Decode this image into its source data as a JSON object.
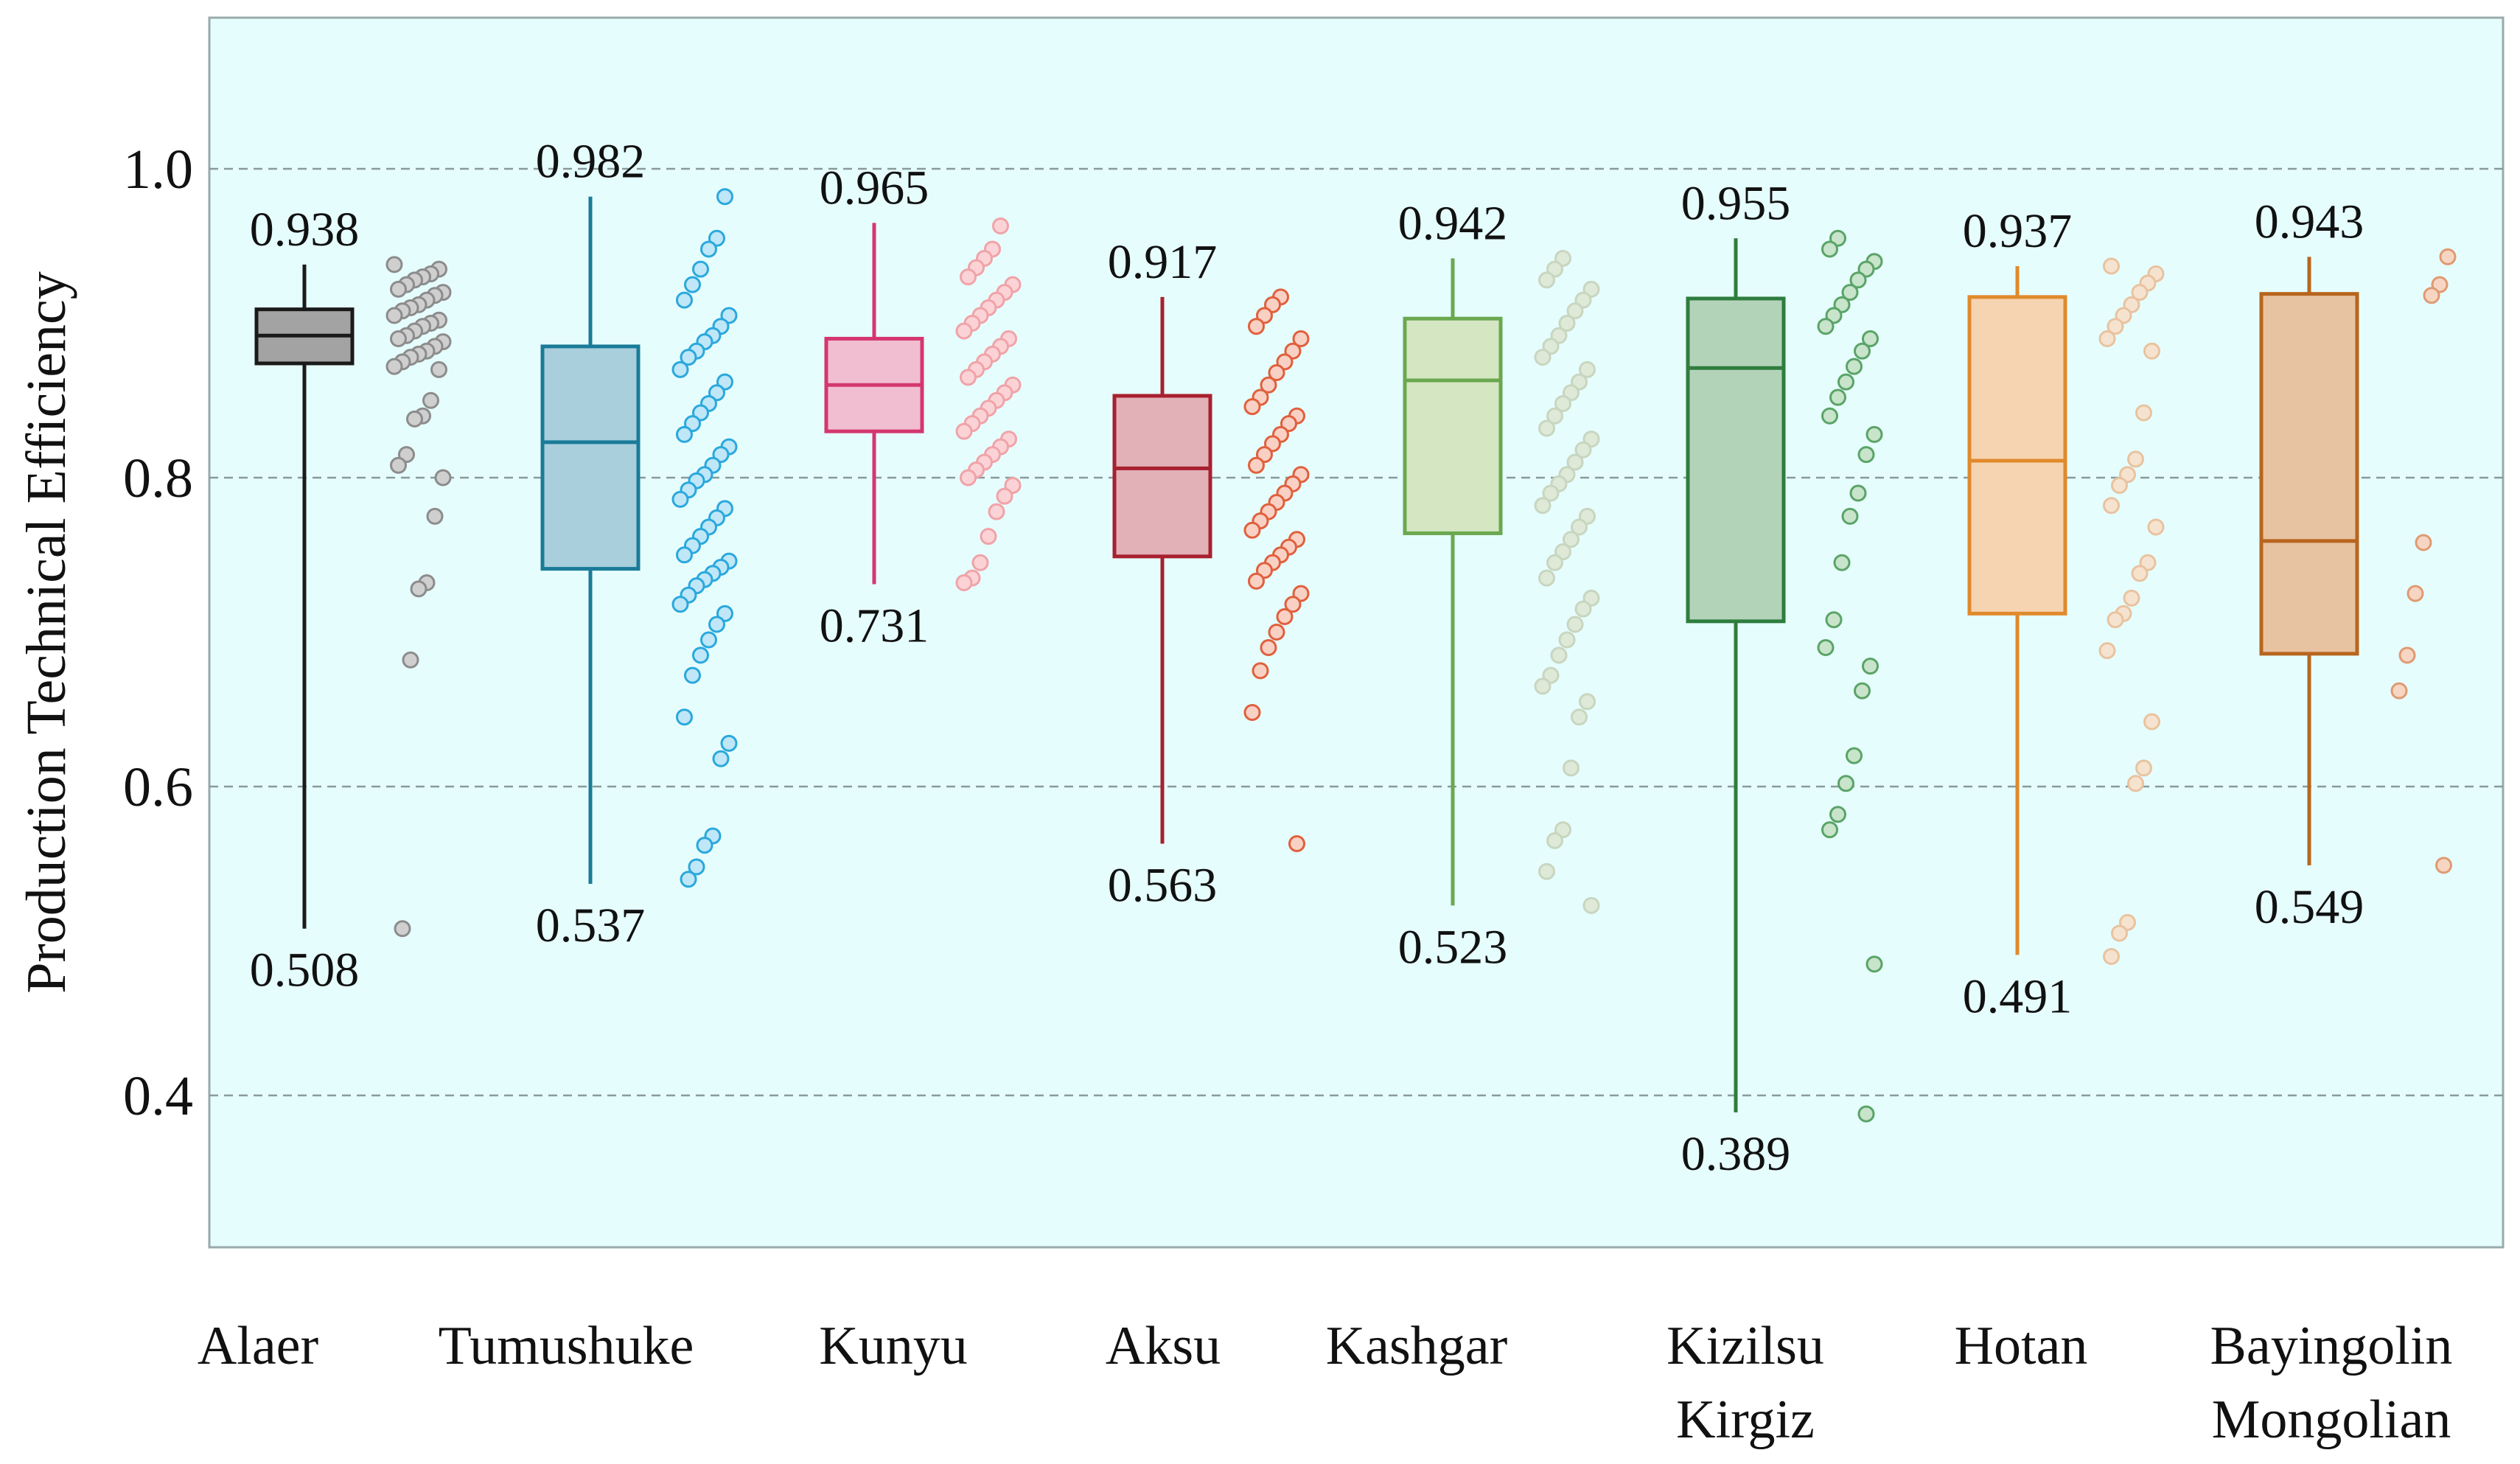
{
  "chart_data": {
    "type": "box",
    "title": "",
    "xlabel": "",
    "ylabel": "Production Technical Efficiency",
    "ylim": [
      0.3,
      1.1
    ],
    "yticks": [
      "0.4",
      "0.6",
      "0.8",
      "1.0"
    ],
    "grid": "horizontal-dashed",
    "background": "#e6fdfd",
    "categories": [
      {
        "name": "Alaer",
        "lines": [
          "Alaer"
        ],
        "min": 0.508,
        "q1": 0.874,
        "median": 0.892,
        "q3": 0.909,
        "max": 0.938,
        "min_label": "0.508",
        "max_label": "0.938",
        "stroke": "#1a1a1a",
        "fill": "#a3a3a3",
        "dot_stroke": "#8c8c8c",
        "dot_fill": "#cfcfcf",
        "points": [
          0.938,
          0.935,
          0.932,
          0.93,
          0.928,
          0.925,
          0.922,
          0.92,
          0.918,
          0.915,
          0.912,
          0.91,
          0.908,
          0.905,
          0.902,
          0.9,
          0.898,
          0.895,
          0.892,
          0.89,
          0.888,
          0.885,
          0.882,
          0.88,
          0.878,
          0.875,
          0.872,
          0.87,
          0.85,
          0.84,
          0.838,
          0.815,
          0.808,
          0.8,
          0.775,
          0.732,
          0.728,
          0.682,
          0.508
        ]
      },
      {
        "name": "Tumushuke",
        "lines": [
          "Tumushuke"
        ],
        "min": 0.537,
        "q1": 0.741,
        "median": 0.823,
        "q3": 0.885,
        "max": 0.982,
        "min_label": "0.537",
        "max_label": "0.982",
        "stroke": "#1a7b99",
        "fill": "#a9cfdc",
        "dot_stroke": "#2aa8dd",
        "dot_fill": "#bfe7f7",
        "points": [
          0.982,
          0.955,
          0.948,
          0.935,
          0.925,
          0.915,
          0.905,
          0.898,
          0.892,
          0.888,
          0.882,
          0.878,
          0.87,
          0.862,
          0.855,
          0.848,
          0.842,
          0.835,
          0.828,
          0.82,
          0.815,
          0.808,
          0.802,
          0.798,
          0.792,
          0.786,
          0.78,
          0.774,
          0.768,
          0.762,
          0.756,
          0.75,
          0.746,
          0.742,
          0.738,
          0.734,
          0.73,
          0.724,
          0.718,
          0.712,
          0.705,
          0.695,
          0.685,
          0.672,
          0.645,
          0.628,
          0.618,
          0.568,
          0.562,
          0.548,
          0.54
        ]
      },
      {
        "name": "Kunyu",
        "lines": [
          "Kunyu"
        ],
        "min": 0.731,
        "q1": 0.83,
        "median": 0.86,
        "q3": 0.89,
        "max": 0.965,
        "min_label": "0.731",
        "max_label": "0.965",
        "stroke": "#d4376f",
        "fill": "#f1bed1",
        "dot_stroke": "#f0a3a8",
        "dot_fill": "#fbd3d6",
        "points": [
          0.963,
          0.948,
          0.942,
          0.936,
          0.93,
          0.925,
          0.92,
          0.915,
          0.91,
          0.905,
          0.9,
          0.895,
          0.89,
          0.885,
          0.88,
          0.875,
          0.87,
          0.865,
          0.86,
          0.855,
          0.85,
          0.845,
          0.84,
          0.835,
          0.83,
          0.825,
          0.82,
          0.815,
          0.81,
          0.805,
          0.8,
          0.795,
          0.788,
          0.778,
          0.762,
          0.745,
          0.735,
          0.732
        ]
      },
      {
        "name": "Aksu",
        "lines": [
          "Aksu"
        ],
        "min": 0.563,
        "q1": 0.749,
        "median": 0.806,
        "q3": 0.853,
        "max": 0.917,
        "min_label": "0.563",
        "max_label": "0.917",
        "stroke": "#a8202f",
        "fill": "#e2b1b8",
        "dot_stroke": "#e0603c",
        "dot_fill": "#f9d0c4",
        "points": [
          0.917,
          0.912,
          0.905,
          0.898,
          0.89,
          0.882,
          0.875,
          0.868,
          0.86,
          0.852,
          0.846,
          0.84,
          0.835,
          0.828,
          0.822,
          0.815,
          0.808,
          0.802,
          0.796,
          0.79,
          0.784,
          0.778,
          0.772,
          0.766,
          0.76,
          0.755,
          0.75,
          0.745,
          0.74,
          0.733,
          0.725,
          0.718,
          0.71,
          0.7,
          0.69,
          0.675,
          0.648,
          0.563
        ]
      },
      {
        "name": "Kashgar",
        "lines": [
          "Kashgar"
        ],
        "min": 0.523,
        "q1": 0.764,
        "median": 0.863,
        "q3": 0.903,
        "max": 0.942,
        "min_label": "0.523",
        "max_label": "0.942",
        "stroke": "#6aa84f",
        "fill": "#d5e6c2",
        "dot_stroke": "#c8d6c0",
        "dot_fill": "#dfe9d8",
        "points": [
          0.942,
          0.935,
          0.928,
          0.922,
          0.915,
          0.908,
          0.9,
          0.892,
          0.885,
          0.878,
          0.87,
          0.862,
          0.855,
          0.848,
          0.84,
          0.832,
          0.825,
          0.818,
          0.81,
          0.802,
          0.796,
          0.79,
          0.782,
          0.775,
          0.768,
          0.76,
          0.752,
          0.745,
          0.735,
          0.722,
          0.715,
          0.705,
          0.695,
          0.685,
          0.672,
          0.665,
          0.655,
          0.645,
          0.612,
          0.572,
          0.565,
          0.545,
          0.523
        ]
      },
      {
        "name": "Kizilsu Kirgiz",
        "lines": [
          "Kizilsu",
          "Kirgiz"
        ],
        "min": 0.389,
        "q1": 0.707,
        "median": 0.871,
        "q3": 0.916,
        "max": 0.955,
        "min_label": "0.389",
        "max_label": "0.955",
        "stroke": "#2e7d3e",
        "fill": "#b3d3b9",
        "dot_stroke": "#5aa467",
        "dot_fill": "#c8e4cb",
        "points": [
          0.955,
          0.948,
          0.94,
          0.935,
          0.928,
          0.92,
          0.912,
          0.905,
          0.898,
          0.89,
          0.882,
          0.872,
          0.862,
          0.852,
          0.84,
          0.828,
          0.815,
          0.79,
          0.775,
          0.745,
          0.708,
          0.69,
          0.678,
          0.662,
          0.62,
          0.602,
          0.582,
          0.572,
          0.485,
          0.388
        ]
      },
      {
        "name": "Hotan",
        "lines": [
          "Hotan"
        ],
        "min": 0.491,
        "q1": 0.712,
        "median": 0.811,
        "q3": 0.917,
        "max": 0.937,
        "min_label": "0.491",
        "max_label": "0.937",
        "stroke": "#e08a2c",
        "fill": "#f6d4b1",
        "dot_stroke": "#e8c3a0",
        "dot_fill": "#f6e3cf",
        "points": [
          0.937,
          0.932,
          0.926,
          0.92,
          0.912,
          0.905,
          0.898,
          0.89,
          0.882,
          0.842,
          0.812,
          0.802,
          0.795,
          0.782,
          0.768,
          0.745,
          0.738,
          0.722,
          0.712,
          0.708,
          0.688,
          0.642,
          0.612,
          0.602,
          0.512,
          0.505,
          0.49
        ]
      },
      {
        "name": "Bayingolin Mongolian",
        "lines": [
          "Bayingolin",
          "Mongolian"
        ],
        "min": 0.549,
        "q1": 0.686,
        "median": 0.759,
        "q3": 0.919,
        "max": 0.943,
        "min_label": "0.549",
        "max_label": "0.943",
        "stroke": "#b8651e",
        "fill": "#e8c3a2",
        "dot_stroke": "#e09a72",
        "dot_fill": "#f6d6c3",
        "points": [
          0.943,
          0.925,
          0.918,
          0.758,
          0.725,
          0.685,
          0.662,
          0.549
        ]
      }
    ]
  }
}
